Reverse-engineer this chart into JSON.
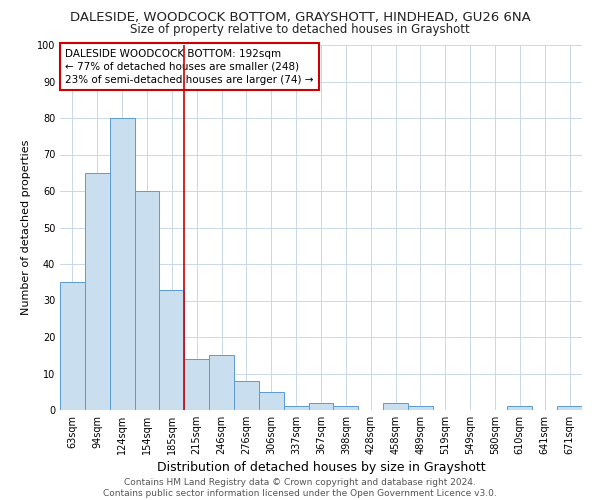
{
  "title": "DALESIDE, WOODCOCK BOTTOM, GRAYSHOTT, HINDHEAD, GU26 6NA",
  "subtitle": "Size of property relative to detached houses in Grayshott",
  "xlabel": "Distribution of detached houses by size in Grayshott",
  "ylabel": "Number of detached properties",
  "bar_labels": [
    "63sqm",
    "94sqm",
    "124sqm",
    "154sqm",
    "185sqm",
    "215sqm",
    "246sqm",
    "276sqm",
    "306sqm",
    "337sqm",
    "367sqm",
    "398sqm",
    "428sqm",
    "458sqm",
    "489sqm",
    "519sqm",
    "549sqm",
    "580sqm",
    "610sqm",
    "641sqm",
    "671sqm"
  ],
  "bar_values": [
    35,
    65,
    80,
    60,
    33,
    14,
    15,
    8,
    5,
    1,
    2,
    1,
    0,
    2,
    1,
    0,
    0,
    0,
    1,
    0,
    1
  ],
  "bar_color": "#c9dff0",
  "bar_edge_color": "#5b9bd5",
  "red_line_x": 4.5,
  "annotation_text": "DALESIDE WOODCOCK BOTTOM: 192sqm\n← 77% of detached houses are smaller (248)\n23% of semi-detached houses are larger (74) →",
  "annotation_box_color": "#ffffff",
  "annotation_box_edge_color": "#cc0000",
  "red_line_color": "#cc0000",
  "footer": "Contains HM Land Registry data © Crown copyright and database right 2024.\nContains public sector information licensed under the Open Government Licence v3.0.",
  "ylim": [
    0,
    100
  ],
  "yticks": [
    0,
    10,
    20,
    30,
    40,
    50,
    60,
    70,
    80,
    90,
    100
  ],
  "title_fontsize": 9.5,
  "subtitle_fontsize": 8.5,
  "xlabel_fontsize": 9,
  "ylabel_fontsize": 8,
  "tick_fontsize": 7,
  "annotation_fontsize": 7.5,
  "footer_fontsize": 6.5,
  "background_color": "#ffffff",
  "grid_color": "#c8d8e8"
}
